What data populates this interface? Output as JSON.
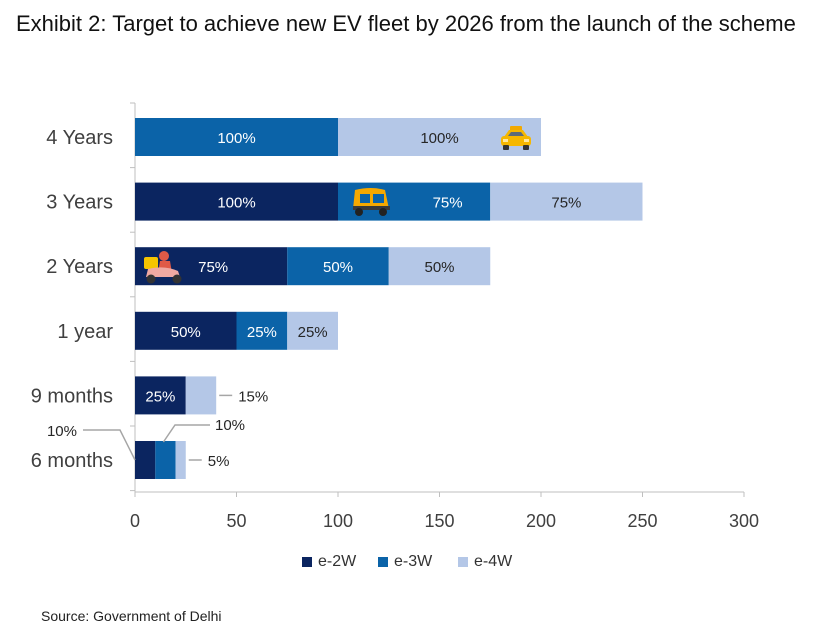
{
  "title": "Exhibit 2: Target to achieve new EV fleet by 2026 from the launch of the scheme",
  "source": "Source: Government of Delhi",
  "colors": {
    "e-2W": "#0B2560",
    "e-3W": "#0B63A8",
    "e-4W": "#B4C7E7"
  },
  "chart_data": {
    "type": "bar",
    "orientation": "horizontal",
    "stacked": true,
    "categories": [
      "4 Years",
      "3 Years",
      "2 Years",
      "1 year",
      "9 months",
      "6 months"
    ],
    "series": [
      {
        "name": "e-2W",
        "values": [
          0,
          100,
          75,
          50,
          25,
          10
        ],
        "labels": [
          "",
          "100%",
          "75%",
          "50%",
          "25%",
          "10%"
        ]
      },
      {
        "name": "e-3W",
        "values": [
          100,
          75,
          50,
          25,
          0,
          10
        ],
        "labels": [
          "100%",
          "75%",
          "50%",
          "25%",
          "",
          "10%"
        ]
      },
      {
        "name": "e-4W",
        "values": [
          100,
          75,
          50,
          25,
          15,
          5
        ],
        "labels": [
          "100%",
          "75%",
          "50%",
          "25%",
          "15%",
          "5%"
        ]
      }
    ],
    "xlim": [
      0,
      300
    ],
    "xticks": [
      0,
      50,
      100,
      150,
      200,
      250,
      300
    ],
    "grid": false,
    "legend": "bottom",
    "icons": [
      "taxi-icon",
      "auto-rickshaw-icon",
      "scooter-icon"
    ]
  }
}
